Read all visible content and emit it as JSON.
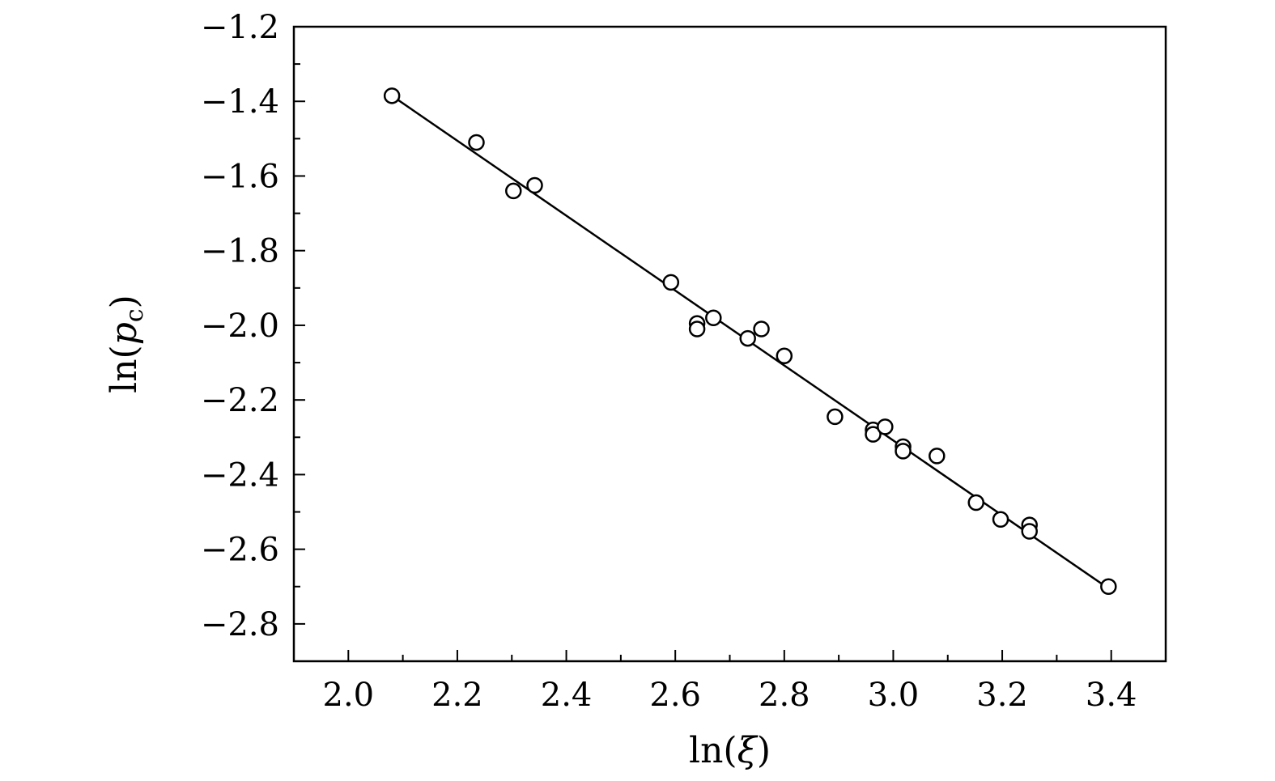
{
  "chart_data": {
    "type": "scatter",
    "xlabel_base": "ln(",
    "xlabel_symbol": "ξ",
    "xlabel_close": ")",
    "ylabel_base": "ln(",
    "ylabel_symbol": "p",
    "ylabel_sub": "c",
    "ylabel_close": ")",
    "xlim": [
      1.9,
      3.5
    ],
    "ylim": [
      -2.9,
      -1.2
    ],
    "x_ticks": [
      2.0,
      2.2,
      2.4,
      2.6,
      2.8,
      3.0,
      3.2,
      3.4
    ],
    "x_tick_labels": [
      "2.0",
      "2.2",
      "2.4",
      "2.6",
      "2.8",
      "3.0",
      "3.2",
      "3.4"
    ],
    "y_ticks": [
      -1.2,
      -1.4,
      -1.6,
      -1.8,
      -2.0,
      -2.2,
      -2.4,
      -2.6,
      -2.8
    ],
    "y_tick_labels": [
      "−1.2",
      "−1.4",
      "−1.6",
      "−1.8",
      "−2.0",
      "−2.2",
      "−2.4",
      "−2.6",
      "−2.8"
    ],
    "grid": false,
    "points": [
      [
        2.08,
        -1.385
      ],
      [
        2.235,
        -1.51
      ],
      [
        2.303,
        -1.64
      ],
      [
        2.342,
        -1.625
      ],
      [
        2.592,
        -1.885
      ],
      [
        2.64,
        -1.995
      ],
      [
        2.64,
        -2.01
      ],
      [
        2.67,
        -1.98
      ],
      [
        2.733,
        -2.035
      ],
      [
        2.758,
        -2.01
      ],
      [
        2.8,
        -2.082
      ],
      [
        2.893,
        -2.245
      ],
      [
        2.963,
        -2.28
      ],
      [
        2.963,
        -2.292
      ],
      [
        2.985,
        -2.272
      ],
      [
        3.018,
        -2.325
      ],
      [
        3.018,
        -2.337
      ],
      [
        3.08,
        -2.35
      ],
      [
        3.152,
        -2.475
      ],
      [
        3.197,
        -2.52
      ],
      [
        3.25,
        -2.535
      ],
      [
        3.25,
        -2.552
      ],
      [
        3.395,
        -2.7
      ]
    ],
    "fit_line": {
      "x": [
        2.08,
        3.395
      ],
      "y": [
        -1.385,
        -2.705
      ]
    }
  }
}
